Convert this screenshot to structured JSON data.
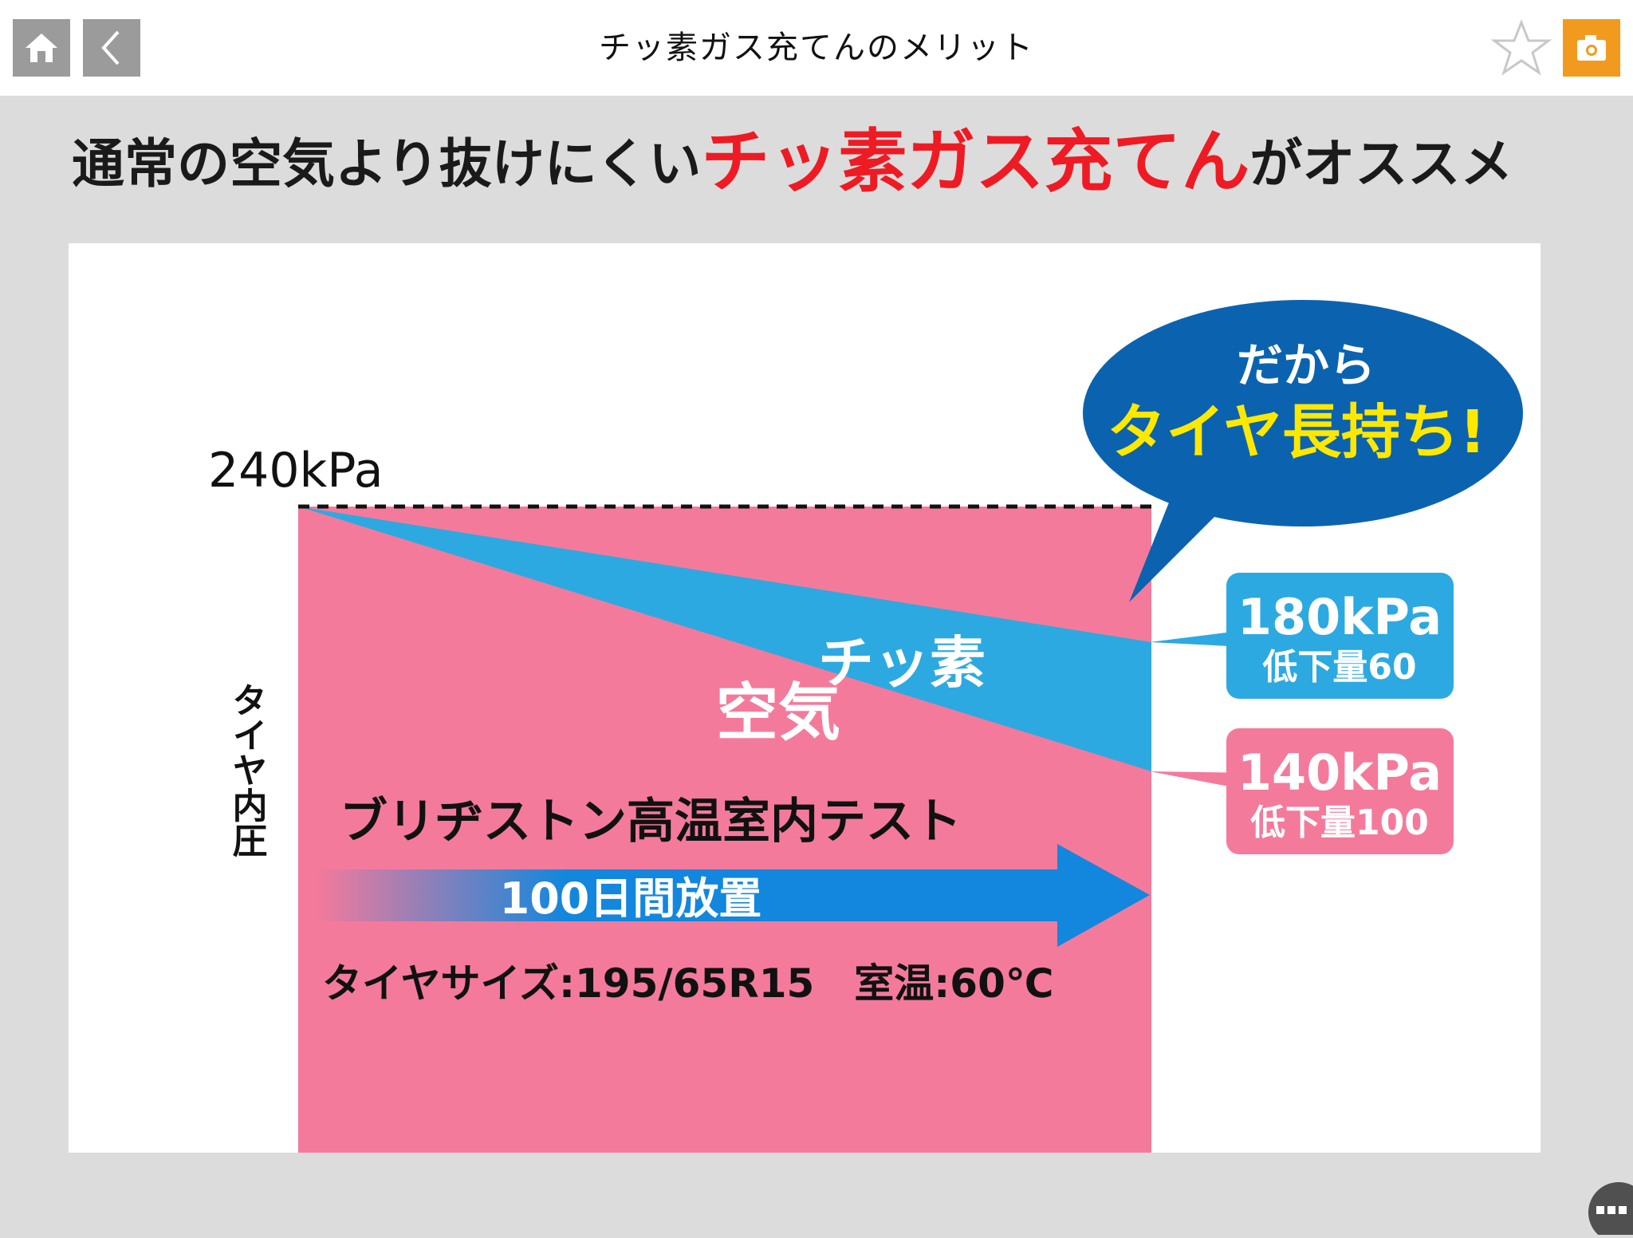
{
  "nav": {
    "title": "チッ素ガス充てんのメリット",
    "home_icon": "home-icon",
    "back_icon": "chevron-left-icon",
    "favorite_icon": "star-outline-icon",
    "camera_icon": "camera-icon",
    "more_icon": "more-dots-icon"
  },
  "headline": {
    "prefix": "通常の空気より抜けにくい",
    "emphasis": "チッ素ガス充てん",
    "suffix": "がオススメ"
  },
  "colors": {
    "background": "#dcdcdc",
    "air": "#f47a9b",
    "nitrogen": "#2da9e1",
    "arrow": "#1287dd",
    "bubble": "#0b63b0",
    "bubble_highlight": "#ffe800",
    "headline_emphasis": "#ee1b24",
    "camera": "#f29a1e"
  },
  "chart_data": {
    "type": "area",
    "y_axis_label": "タイヤ内圧",
    "start_label": "240kPa",
    "start_value": 240,
    "series": [
      {
        "name": "チッ素",
        "start": 240,
        "end": 180
      },
      {
        "name": "空気",
        "start": 240,
        "end": 140
      }
    ],
    "callouts": [
      {
        "value_label": "180kPa",
        "drop_label": "低下量60"
      },
      {
        "value_label": "140kPa",
        "drop_label": "低下量100"
      }
    ],
    "test_title": "ブリヂストン高温室内テスト",
    "duration_label": "100日間放置",
    "conditions": "タイヤサイズ:195/65R15　室温:60℃",
    "speech_bubble": {
      "line1": "だから",
      "line2": "タイヤ長持ち!"
    }
  }
}
